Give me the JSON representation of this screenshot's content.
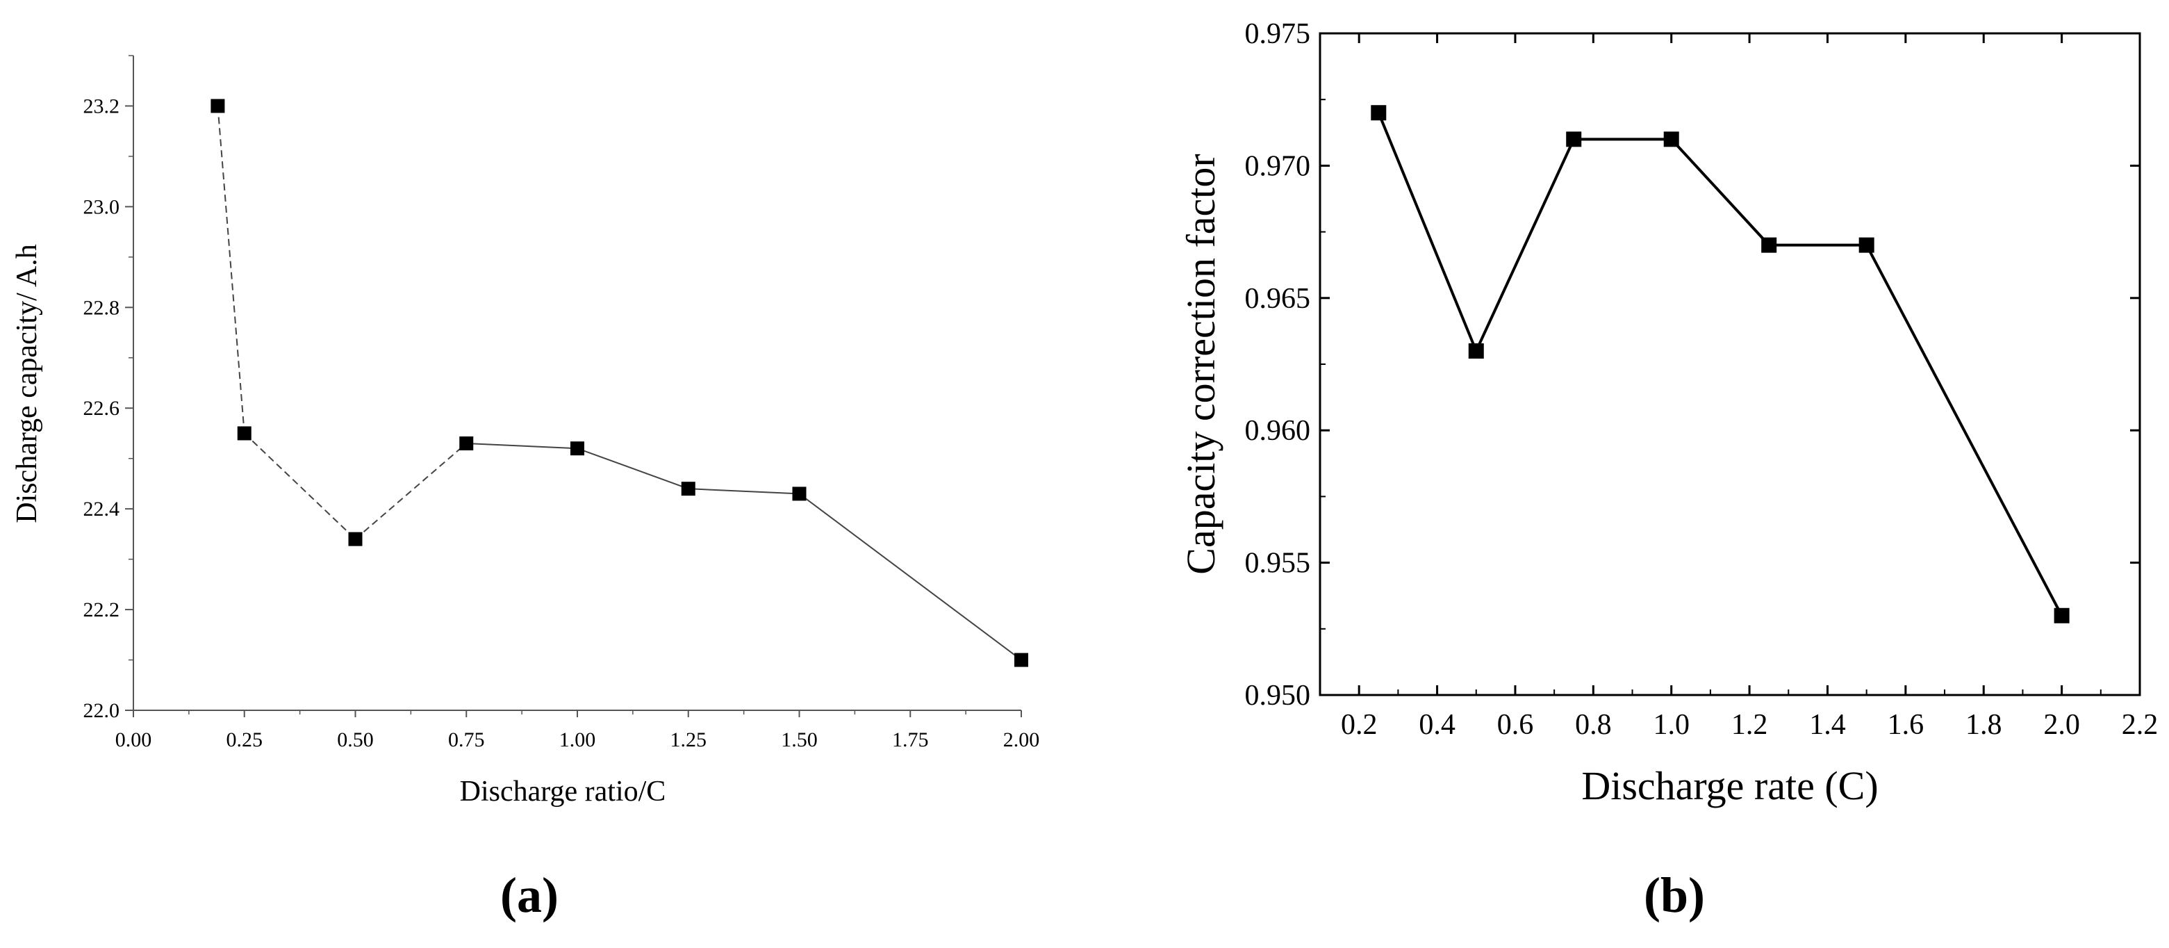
{
  "chart_data": [
    {
      "panel_label": "(a)",
      "type": "line",
      "xlabel": "Discharge ratio/C",
      "ylabel": "Discharge capacity/ A.h",
      "xlim": [
        0.0,
        2.0
      ],
      "ylim": [
        22.0,
        23.3
      ],
      "x_ticks": [
        "0.00",
        "0.25",
        "0.50",
        "0.75",
        "1.00",
        "1.25",
        "1.50",
        "1.75",
        "2.00"
      ],
      "y_ticks": [
        "22.0",
        "22.2",
        "22.4",
        "22.6",
        "22.8",
        "23.0",
        "23.2"
      ],
      "grid": false,
      "marker": "square",
      "series": [
        {
          "x": [
            0.19,
            0.25,
            0.5,
            0.75,
            1.0,
            1.25,
            1.5,
            2.0
          ],
          "y": [
            23.2,
            22.55,
            22.34,
            22.53,
            22.52,
            22.44,
            22.43,
            22.1
          ]
        }
      ]
    },
    {
      "panel_label": "(b)",
      "type": "line",
      "xlabel": "Discharge rate (C)",
      "ylabel": "Capacity correction factor",
      "xlim": [
        0.1,
        2.2
      ],
      "ylim": [
        0.95,
        0.975
      ],
      "x_ticks": [
        "0.2",
        "0.4",
        "0.6",
        "0.8",
        "1.0",
        "1.2",
        "1.4",
        "1.6",
        "1.8",
        "2.0",
        "2.2"
      ],
      "y_ticks": [
        "0.950",
        "0.955",
        "0.960",
        "0.965",
        "0.970",
        "0.975"
      ],
      "grid": false,
      "marker": "square",
      "series": [
        {
          "x": [
            0.25,
            0.5,
            0.75,
            1.0,
            1.25,
            1.5,
            2.0
          ],
          "y": [
            0.972,
            0.963,
            0.971,
            0.971,
            0.967,
            0.967,
            0.953
          ]
        }
      ]
    }
  ]
}
